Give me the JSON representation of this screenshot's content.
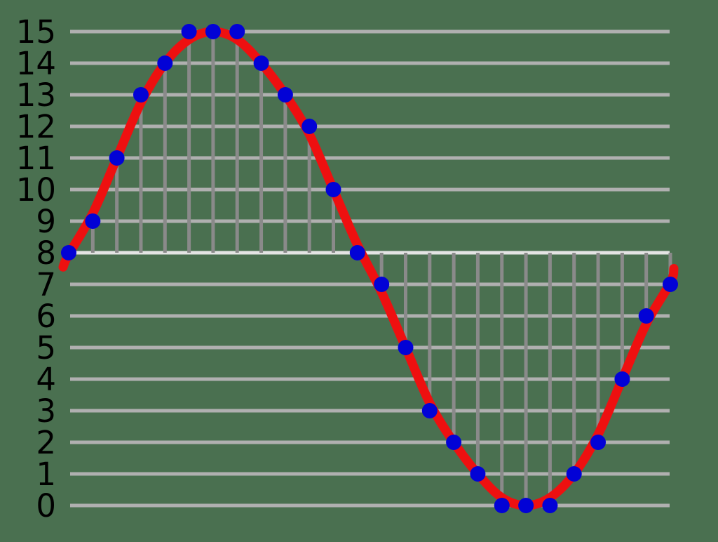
{
  "chart_data": {
    "type": "line+scatter",
    "description_role": "sampled-and-quantized-sine-wave",
    "y_axis": {
      "tick_labels": [
        "15",
        "14",
        "13",
        "12",
        "11",
        "10",
        "9",
        "8",
        "7",
        "6",
        "5",
        "4",
        "3",
        "2",
        "1",
        "0"
      ],
      "min": 0,
      "max": 15
    },
    "x_axis": {
      "tick_labels": [],
      "sample_count": 26
    },
    "baseline_value": 8,
    "grid": {
      "horizontal": true,
      "vertical_stems": true
    },
    "legend": {
      "visible": false
    },
    "series": [
      {
        "name": "continuous-signal",
        "type": "line",
        "color": "#ee1010"
      },
      {
        "name": "quantized-samples",
        "type": "scatter",
        "color": "#0202d6",
        "values": [
          8,
          9,
          11,
          13,
          14,
          15,
          15,
          15,
          14,
          13,
          12,
          10,
          8,
          7,
          5,
          3,
          2,
          1,
          0,
          0,
          0,
          1,
          2,
          4,
          6,
          7
        ]
      }
    ]
  },
  "colors": {
    "background": "#4a7050",
    "gridline": "#b0b0b0",
    "baseline": "#e4e4e4",
    "stem": "#8a8a8a",
    "curve": "#ee1010",
    "dot": "#0202d6",
    "tick_label": "#000000"
  }
}
